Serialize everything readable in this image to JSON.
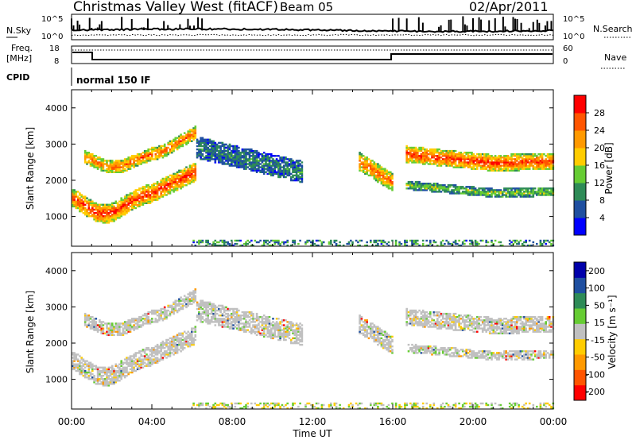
{
  "header": {
    "title": "Christmas Valley West (fitACF)",
    "beam": "Beam 05",
    "date": "02/Apr/2011"
  },
  "noise_panel": {
    "left_label": "N.Sky",
    "right_label": "N.Search",
    "tick_top": "10^5",
    "tick_bottom": "10^0"
  },
  "freq_panel": {
    "left_label_1": "Freq.",
    "left_label_2": "[MHz]",
    "left_tick_top": "18",
    "left_tick_bottom": "8",
    "right_label": "Nave",
    "right_tick_top": "60",
    "right_tick_bottom": "0"
  },
  "cpid_panel": {
    "label": "CPID",
    "value": "normal 150 IF"
  },
  "colors": {
    "power_scale": [
      "#0000ff",
      "#1f4fa0",
      "#2e8b57",
      "#66cc33",
      "#ffcc00",
      "#ff9900",
      "#ff5500",
      "#ff0000"
    ],
    "velocity_scale": [
      "#0000aa",
      "#1f4fa0",
      "#2e8b57",
      "#66cc33",
      "#c0c0c0",
      "#ffcc00",
      "#ff9900",
      "#ff5500",
      "#ff0000"
    ],
    "ground_scatter": "#c0c0c0"
  },
  "chart_data": [
    {
      "type": "heatmap",
      "name": "power",
      "ylabel": "Slant Range [km]",
      "ylim": [
        180,
        4500
      ],
      "y_ticks": [
        "1000",
        "2000",
        "3000",
        "4000"
      ],
      "colorbar_label": "Power [dB]",
      "colorbar_ticks": [
        "4",
        "8",
        "12",
        "16",
        "20",
        "24",
        "28"
      ],
      "colorbar_range": [
        0,
        32
      ]
    },
    {
      "type": "heatmap",
      "name": "velocity",
      "ylabel": "Slant Range [km]",
      "ylim": [
        180,
        4500
      ],
      "y_ticks": [
        "1000",
        "2000",
        "3000",
        "4000"
      ],
      "colorbar_label": "Velocity [m s⁻¹]",
      "colorbar_ticks": [
        "200",
        "100",
        "50",
        "15",
        "-15",
        "-50",
        "-100",
        "-200"
      ]
    }
  ],
  "x_axis": {
    "label": "Time UT",
    "ticks": [
      "00:00",
      "04:00",
      "08:00",
      "12:00",
      "16:00",
      "20:00",
      "00:00"
    ],
    "range_hours": [
      0,
      24
    ]
  }
}
